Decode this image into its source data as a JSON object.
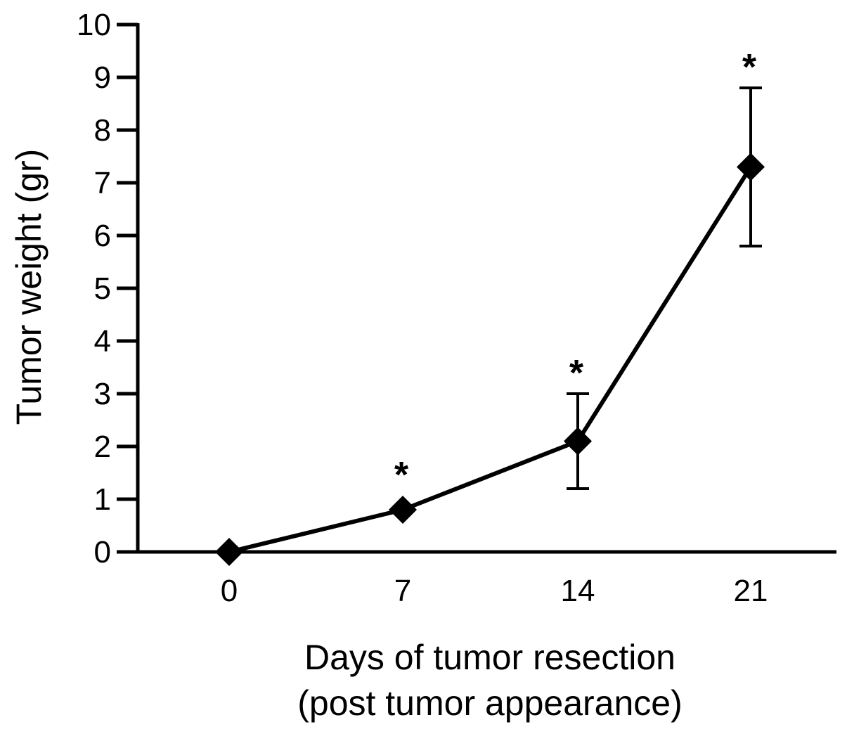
{
  "chart_data": {
    "type": "line",
    "title": "",
    "xlabel_lines": [
      "Days of tumor resection",
      "(post tumor appearance)"
    ],
    "ylabel": "Tumor weight (gr)",
    "x_categories": [
      "0",
      "7",
      "14",
      "21"
    ],
    "ylim": [
      0,
      10
    ],
    "y_ticks": [
      "0",
      "1",
      "2",
      "3",
      "4",
      "5",
      "6",
      "7",
      "8",
      "9",
      "10"
    ],
    "grid": false,
    "legend": "none",
    "series": [
      {
        "marker": "diamond",
        "color": "#000000",
        "points": [
          {
            "x": "0",
            "y": 0.0,
            "error": 0,
            "annotation": ""
          },
          {
            "x": "7",
            "y": 0.8,
            "error": 0,
            "annotation": "*"
          },
          {
            "x": "14",
            "y": 2.1,
            "error": 0.9,
            "annotation": "*"
          },
          {
            "x": "21",
            "y": 7.3,
            "error": 1.5,
            "annotation": "*"
          }
        ]
      }
    ]
  }
}
